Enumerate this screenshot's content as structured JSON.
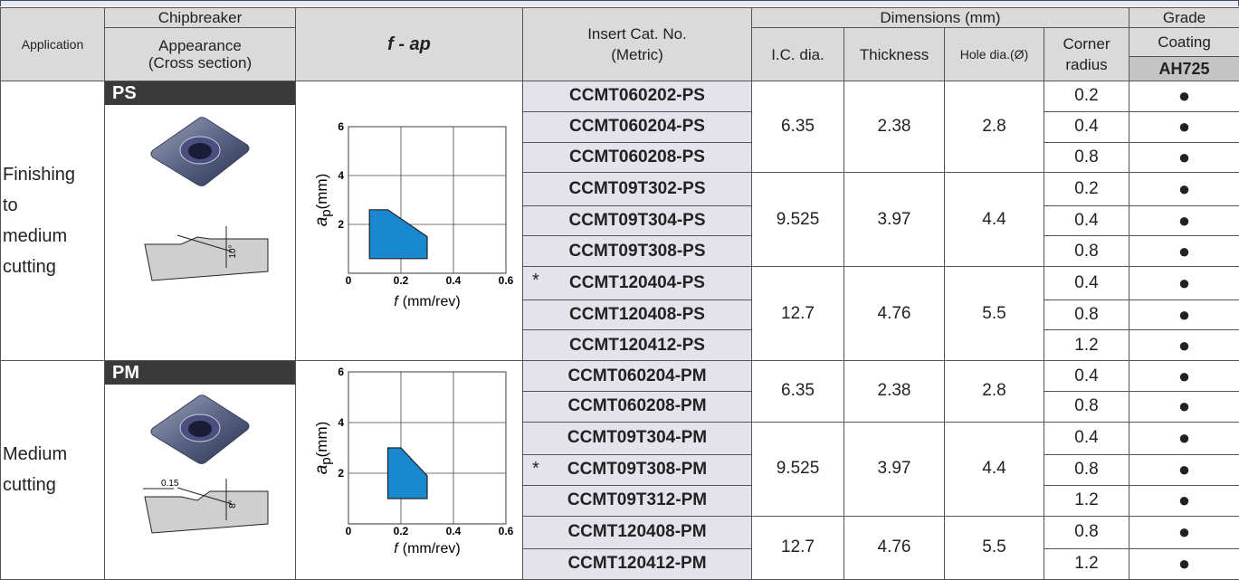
{
  "header": {
    "application": "Application",
    "chipbreaker": "Chipbreaker",
    "appearance": "Appearance",
    "cross_section": "(Cross section)",
    "f_ap": "f - ap",
    "insert": "Insert Cat. No.",
    "metric": "(Metric)",
    "dimensions": "Dimensions (mm)",
    "ic_dia": "I.C. dia.",
    "thickness": "Thickness",
    "hole_dia": "Hole dia.(Ø)",
    "corner": "Corner",
    "radius": "radius",
    "grade": "Grade",
    "coating": "Coating",
    "grade_name": "AH725"
  },
  "sections": [
    {
      "application": [
        "Finishing",
        "to",
        "medium",
        "cutting"
      ],
      "chipbreaker": "PS",
      "cross_section_labels": [
        "10°"
      ],
      "chart": {
        "type": "area",
        "xlim": [
          0,
          0.6
        ],
        "ylim": [
          0,
          6
        ],
        "xticks": [
          0,
          0.2,
          0.4,
          0.6
        ],
        "yticks": [
          2,
          4,
          6
        ],
        "grid": true,
        "color": "#1a88d0",
        "f": [
          0.08,
          0.08,
          0.15,
          0.3,
          0.3
        ],
        "ap": [
          0.6,
          2.6,
          2.6,
          1.5,
          0.6
        ],
        "xlabel_symbol": "f",
        "xlabel_unit": "(mm/rev)",
        "ylabel_symbol": "a",
        "ylabel_subscript": "p",
        "ylabel_unit": "(mm)"
      },
      "groups": [
        {
          "ic_dia": 6.35,
          "thickness": 2.38,
          "hole_dia": 2.8,
          "rows": [
            {
              "cat_no": "CCMT060202-PS",
              "corner_radius": 0.2,
              "grade": "●"
            },
            {
              "cat_no": "CCMT060204-PS",
              "corner_radius": 0.4,
              "grade": "●"
            },
            {
              "cat_no": "CCMT060208-PS",
              "corner_radius": 0.8,
              "grade": "●"
            }
          ]
        },
        {
          "ic_dia": 9.525,
          "thickness": 3.97,
          "hole_dia": 4.4,
          "rows": [
            {
              "cat_no": "CCMT09T302-PS",
              "corner_radius": 0.2,
              "grade": "●"
            },
            {
              "cat_no": "CCMT09T304-PS",
              "corner_radius": 0.4,
              "grade": "●"
            },
            {
              "cat_no": "CCMT09T308-PS",
              "corner_radius": 0.8,
              "grade": "●"
            }
          ]
        },
        {
          "ic_dia": 12.7,
          "thickness": 4.76,
          "hole_dia": 5.5,
          "rows": [
            {
              "mark": "*",
              "cat_no": "CCMT120404-PS",
              "corner_radius": 0.4,
              "grade": "●"
            },
            {
              "cat_no": "CCMT120408-PS",
              "corner_radius": 0.8,
              "grade": "●"
            },
            {
              "cat_no": "CCMT120412-PS",
              "corner_radius": 1.2,
              "grade": "●"
            }
          ]
        }
      ]
    },
    {
      "application": [
        "Medium",
        "cutting"
      ],
      "chipbreaker": "PM",
      "cross_section_labels": [
        "0.15",
        "8°"
      ],
      "chart": {
        "type": "area",
        "xlim": [
          0,
          0.6
        ],
        "ylim": [
          0,
          6
        ],
        "xticks": [
          0,
          0.2,
          0.4,
          0.6
        ],
        "yticks": [
          2,
          4,
          6
        ],
        "grid": true,
        "color": "#1a88d0",
        "f": [
          0.15,
          0.15,
          0.2,
          0.3,
          0.3
        ],
        "ap": [
          1.0,
          3.0,
          3.0,
          1.9,
          1.0
        ],
        "xlabel_symbol": "f",
        "xlabel_unit": "(mm/rev)",
        "ylabel_symbol": "a",
        "ylabel_subscript": "p",
        "ylabel_unit": "(mm)"
      },
      "groups": [
        {
          "ic_dia": 6.35,
          "thickness": 2.38,
          "hole_dia": 2.8,
          "rows": [
            {
              "cat_no": "CCMT060204-PM",
              "corner_radius": 0.4,
              "grade": "●"
            },
            {
              "cat_no": "CCMT060208-PM",
              "corner_radius": 0.8,
              "grade": "●"
            }
          ]
        },
        {
          "ic_dia": 9.525,
          "thickness": 3.97,
          "hole_dia": 4.4,
          "rows": [
            {
              "cat_no": "CCMT09T304-PM",
              "corner_radius": 0.4,
              "grade": "●"
            },
            {
              "mark": "*",
              "cat_no": "CCMT09T308-PM",
              "corner_radius": 0.8,
              "grade": "●"
            },
            {
              "cat_no": "CCMT09T312-PM",
              "corner_radius": 1.2,
              "grade": "●"
            }
          ]
        },
        {
          "ic_dia": 12.7,
          "thickness": 4.76,
          "hole_dia": 5.5,
          "rows": [
            {
              "cat_no": "CCMT120408-PM",
              "corner_radius": 0.8,
              "grade": "●"
            },
            {
              "cat_no": "CCMT120412-PM",
              "corner_radius": 1.2,
              "grade": "●"
            }
          ]
        }
      ]
    }
  ]
}
